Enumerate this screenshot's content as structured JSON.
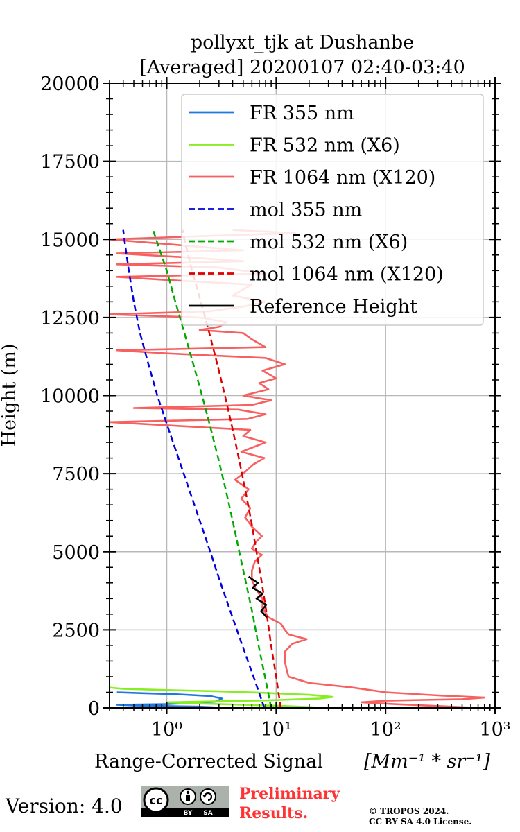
{
  "chart_data": {
    "type": "line",
    "title_line1": "pollyxt_tjk at Dushanbe",
    "title_line2": "[Averaged] 20200107 02:40-03:40",
    "xlabel": "Range-Corrected Signal",
    "xlabel_units": "[Mm⁻¹ * sr⁻¹]",
    "ylabel": "Height (m)",
    "xscale": "log",
    "xlim": [
      0.3,
      1000
    ],
    "ylim": [
      0,
      20000
    ],
    "grid": true,
    "legend_position": "top-right",
    "y_ticks": [
      0,
      2500,
      5000,
      7500,
      10000,
      12500,
      15000,
      17500,
      20000
    ],
    "y_tick_labels": [
      "0",
      "2500",
      "5000",
      "7500",
      "10000",
      "12500",
      "15000",
      "17500",
      "20000"
    ],
    "x_ticks": [
      1,
      10,
      100,
      1000
    ],
    "x_tick_labels": [
      "10⁰",
      "10¹",
      "10²",
      "10³"
    ],
    "series": [
      {
        "name": "FR 355 nm",
        "color": "#1f77e0",
        "style": "solid",
        "points": [
          [
            3.5,
            0
          ],
          [
            2.0,
            40
          ],
          [
            0.9,
            60
          ],
          [
            0.5,
            80
          ],
          [
            0.35,
            100
          ],
          [
            1.0,
            120
          ],
          [
            2.8,
            200
          ],
          [
            3.2,
            300
          ],
          [
            2.5,
            380
          ],
          [
            1.2,
            440
          ],
          [
            0.6,
            470
          ],
          [
            0.35,
            500
          ]
        ]
      },
      {
        "name": "FR 532 nm (X6)",
        "color": "#88ee22",
        "style": "solid",
        "points": [
          [
            30,
            0
          ],
          [
            12,
            60
          ],
          [
            5,
            100
          ],
          [
            2,
            140
          ],
          [
            1,
            180
          ],
          [
            8,
            240
          ],
          [
            25,
            300
          ],
          [
            33,
            350
          ],
          [
            20,
            420
          ],
          [
            8,
            480
          ],
          [
            3,
            530
          ],
          [
            1,
            570
          ],
          [
            0.4,
            610
          ],
          [
            0.3,
            650
          ]
        ]
      },
      {
        "name": "FR 1064 nm (X120)",
        "color": "#f86060",
        "style": "solid",
        "points": [
          [
            700,
            0
          ],
          [
            300,
            60
          ],
          [
            120,
            120
          ],
          [
            60,
            180
          ],
          [
            100,
            230
          ],
          [
            500,
            280
          ],
          [
            800,
            330
          ],
          [
            300,
            400
          ],
          [
            100,
            500
          ],
          [
            50,
            650
          ],
          [
            20,
            800
          ],
          [
            13,
            1000
          ],
          [
            12.5,
            1200
          ],
          [
            12,
            1500
          ],
          [
            12,
            1800
          ],
          [
            14,
            2050
          ],
          [
            19,
            2200
          ],
          [
            13,
            2350
          ],
          [
            12,
            2500
          ],
          [
            11,
            2700
          ],
          [
            8.5,
            2900
          ],
          [
            7.5,
            3200
          ],
          [
            7.5,
            3500
          ],
          [
            6.5,
            3800
          ],
          [
            6,
            4100
          ],
          [
            6,
            4400
          ],
          [
            6.4,
            4700
          ],
          [
            7.4,
            4900
          ],
          [
            6,
            5100
          ],
          [
            6.5,
            5300
          ],
          [
            7.4,
            5500
          ],
          [
            6,
            5800
          ],
          [
            5.2,
            6100
          ],
          [
            5.8,
            6400
          ],
          [
            4.8,
            6700
          ],
          [
            5.6,
            7000
          ],
          [
            4.2,
            7300
          ],
          [
            5,
            7500
          ],
          [
            6.2,
            7800
          ],
          [
            7.8,
            8000
          ],
          [
            4.8,
            8200
          ],
          [
            8,
            8500
          ],
          [
            5,
            8700
          ],
          [
            5.8,
            8900
          ],
          [
            0.3,
            9150
          ],
          [
            5.5,
            9250
          ],
          [
            8,
            9400
          ],
          [
            4.5,
            9550
          ],
          [
            0.5,
            9600
          ],
          [
            6,
            9700
          ],
          [
            9,
            9850
          ],
          [
            5,
            10000
          ],
          [
            8.5,
            10200
          ],
          [
            7,
            10400
          ],
          [
            10,
            10550
          ],
          [
            7.5,
            10800
          ],
          [
            12,
            11000
          ],
          [
            8,
            11200
          ],
          [
            1,
            11350
          ],
          [
            0.35,
            11450
          ],
          [
            8,
            11550
          ],
          [
            6,
            11800
          ],
          [
            5,
            12000
          ],
          [
            2,
            12100
          ],
          [
            3,
            12200
          ],
          [
            3.5,
            12350
          ],
          [
            2,
            12500
          ],
          [
            0.3,
            12600
          ],
          [
            2.5,
            12700
          ],
          [
            5,
            12850
          ],
          [
            8,
            13000
          ],
          [
            4,
            13200
          ],
          [
            5,
            13400
          ],
          [
            6,
            13550
          ],
          [
            1,
            13700
          ],
          [
            0.35,
            13800
          ],
          [
            8,
            13900
          ],
          [
            3,
            14100
          ],
          [
            0.35,
            14200
          ],
          [
            5,
            14300
          ],
          [
            2,
            14400
          ],
          [
            0.35,
            14550
          ],
          [
            5,
            14650
          ],
          [
            1.5,
            14800
          ],
          [
            0.3,
            15000
          ],
          [
            2,
            15100
          ],
          [
            15,
            15200
          ],
          [
            4,
            15300
          ]
        ]
      },
      {
        "name": "mol 355 nm",
        "color": "#0000dd",
        "style": "dashed",
        "points": [
          [
            7.8,
            0
          ],
          [
            6.2,
            1000
          ],
          [
            4.9,
            2000
          ],
          [
            3.9,
            3000
          ],
          [
            3.1,
            4000
          ],
          [
            2.5,
            5000
          ],
          [
            2.0,
            6000
          ],
          [
            1.6,
            7000
          ],
          [
            1.28,
            8000
          ],
          [
            1.02,
            9000
          ],
          [
            0.82,
            10000
          ],
          [
            0.68,
            11000
          ],
          [
            0.57,
            12000
          ],
          [
            0.5,
            13000
          ],
          [
            0.45,
            14000
          ],
          [
            0.41,
            15000
          ],
          [
            0.4,
            15300
          ]
        ]
      },
      {
        "name": "mol 532 nm (X6)",
        "color": "#00aa00",
        "style": "dashed",
        "points": [
          [
            9.0,
            0
          ],
          [
            7.9,
            1000
          ],
          [
            6.9,
            2000
          ],
          [
            6.1,
            3000
          ],
          [
            5.3,
            4000
          ],
          [
            4.6,
            5000
          ],
          [
            4.0,
            6000
          ],
          [
            3.45,
            7000
          ],
          [
            2.95,
            8000
          ],
          [
            2.5,
            9000
          ],
          [
            2.1,
            10000
          ],
          [
            1.75,
            11000
          ],
          [
            1.45,
            12000
          ],
          [
            1.2,
            13000
          ],
          [
            1.0,
            14000
          ],
          [
            0.8,
            15000
          ],
          [
            0.75,
            15300
          ]
        ]
      },
      {
        "name": "mol 1064 nm (X120)",
        "color": "#dd0000",
        "style": "dashed",
        "points": [
          [
            11,
            0
          ],
          [
            10,
            1000
          ],
          [
            9,
            2000
          ],
          [
            8.2,
            3000
          ],
          [
            7.4,
            4000
          ],
          [
            6.6,
            5000
          ],
          [
            5.9,
            6000
          ],
          [
            5.2,
            7000
          ],
          [
            4.55,
            8000
          ],
          [
            3.95,
            9000
          ],
          [
            3.4,
            10000
          ],
          [
            2.9,
            11000
          ],
          [
            2.45,
            12000
          ],
          [
            2.05,
            13000
          ],
          [
            1.7,
            14000
          ],
          [
            1.45,
            15000
          ],
          [
            1.4,
            15300
          ]
        ]
      },
      {
        "name": "Reference Height",
        "color": "#000000",
        "style": "solid",
        "points": [
          [
            8.2,
            2900
          ],
          [
            7.3,
            3100
          ],
          [
            8.1,
            3300
          ],
          [
            6.6,
            3500
          ],
          [
            7.5,
            3650
          ],
          [
            6.1,
            3850
          ],
          [
            6.8,
            4000
          ],
          [
            5.6,
            4200
          ]
        ]
      }
    ]
  },
  "footer": {
    "version_label": "Version: 4.0",
    "preliminary_line1": "Preliminary",
    "preliminary_line2": "Results.",
    "copyright_line1": "© TROPOS 2024.",
    "copyright_line2": "CC BY SA 4.0 License.",
    "badge_cc": "cc",
    "badge_by": "BY",
    "badge_sa": "SA"
  }
}
